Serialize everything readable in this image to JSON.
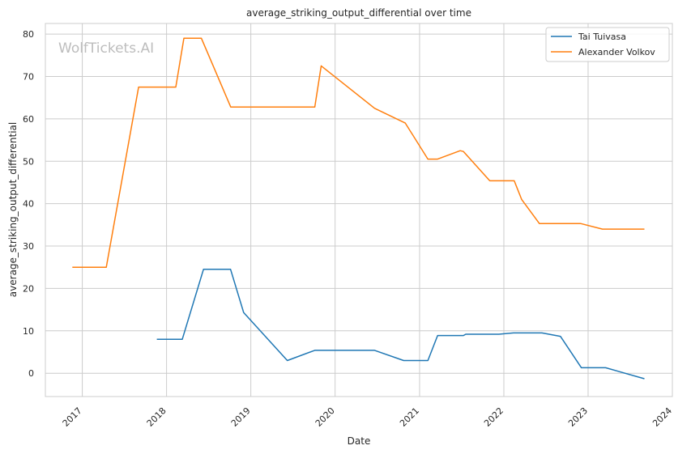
{
  "chart_data": {
    "type": "line",
    "title": "average_striking_output_differential over time",
    "xlabel": "Date",
    "ylabel": "average_striking_output_differential",
    "watermark": "WolfTickets.AI",
    "x_ticks": [
      "2017",
      "2018",
      "2019",
      "2020",
      "2021",
      "2022",
      "2023",
      "2024"
    ],
    "y_ticks": [
      0,
      10,
      20,
      30,
      40,
      50,
      60,
      70,
      80
    ],
    "xlim": [
      "2016-07-25",
      "2024-01-01"
    ],
    "ylim": [
      -5.5,
      82.5
    ],
    "grid": true,
    "legend_position": "top-right",
    "series": [
      {
        "name": "Tai Tuivasa",
        "color": "#1f77b4",
        "points": [
          [
            "2017-11-20",
            8.0
          ],
          [
            "2018-03-10",
            8.0
          ],
          [
            "2018-06-10",
            24.5
          ],
          [
            "2018-10-05",
            24.5
          ],
          [
            "2018-12-01",
            14.3
          ],
          [
            "2019-06-08",
            3.0
          ],
          [
            "2019-10-05",
            5.4
          ],
          [
            "2020-06-20",
            5.4
          ],
          [
            "2020-10-24",
            3.0
          ],
          [
            "2021-02-06",
            3.0
          ],
          [
            "2021-03-20",
            8.9
          ],
          [
            "2021-07-10",
            8.9
          ],
          [
            "2021-07-20",
            9.2
          ],
          [
            "2021-12-10",
            9.2
          ],
          [
            "2022-02-12",
            9.5
          ],
          [
            "2022-06-15",
            9.5
          ],
          [
            "2022-09-03",
            8.7
          ],
          [
            "2022-12-03",
            1.3
          ],
          [
            "2023-03-18",
            1.3
          ],
          [
            "2023-09-02",
            -1.3
          ]
        ]
      },
      {
        "name": "Alexander Volkov",
        "color": "#ff7f0e",
        "points": [
          [
            "2016-11-19",
            25.0
          ],
          [
            "2017-04-15",
            25.0
          ],
          [
            "2017-09-02",
            67.5
          ],
          [
            "2018-02-10",
            67.5
          ],
          [
            "2018-03-17",
            79.0
          ],
          [
            "2018-06-01",
            79.0
          ],
          [
            "2018-10-06",
            62.8
          ],
          [
            "2019-10-05",
            62.8
          ],
          [
            "2019-11-02",
            72.5
          ],
          [
            "2020-06-20",
            62.5
          ],
          [
            "2020-10-31",
            59.0
          ],
          [
            "2021-02-06",
            50.5
          ],
          [
            "2021-03-20",
            50.5
          ],
          [
            "2021-06-26",
            52.5
          ],
          [
            "2021-07-10",
            52.3
          ],
          [
            "2021-11-01",
            45.4
          ],
          [
            "2022-02-15",
            45.4
          ],
          [
            "2022-03-19",
            41.0
          ],
          [
            "2022-06-04",
            35.3
          ],
          [
            "2022-12-01",
            35.3
          ],
          [
            "2023-03-04",
            34.0
          ],
          [
            "2023-09-02",
            34.0
          ]
        ]
      }
    ]
  }
}
